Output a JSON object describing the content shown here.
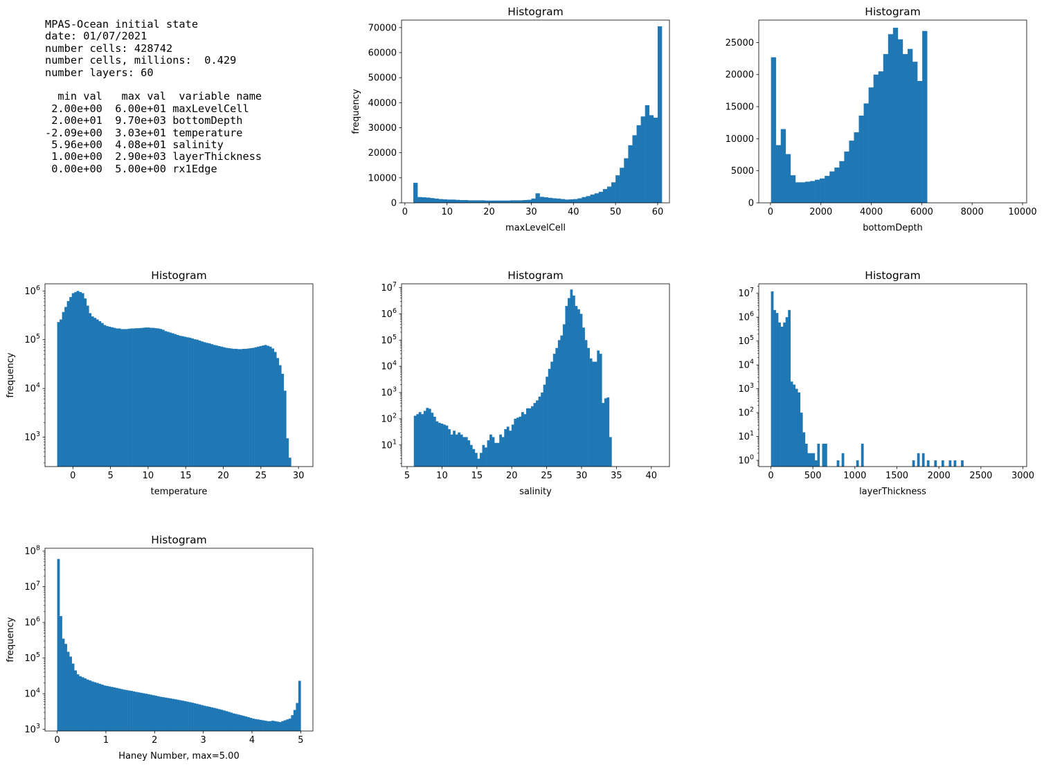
{
  "info": {
    "lines": [
      "MPAS-Ocean initial state",
      "date: 01/07/2021",
      "number cells: 428742",
      "number cells, millions:  0.429",
      "number layers: 60",
      "",
      "  min val   max val  variable name",
      " 2.00e+00  6.00e+01 maxLevelCell",
      " 2.00e+01  9.70e+03 bottomDepth",
      "-2.09e+00  3.03e+01 temperature",
      " 5.96e+00  4.08e+01 salinity",
      " 1.00e+00  2.90e+03 layerThickness",
      " 0.00e+00  5.00e+00 rx1Edge"
    ]
  },
  "colors": {
    "bar": "#1f77b4"
  },
  "chart_data": [
    {
      "type": "bar",
      "title": "Histogram",
      "xlabel": "maxLevelCell",
      "ylabel": "frequency",
      "yscale": "linear",
      "xlim": [
        -0.8,
        62.8
      ],
      "ylim": [
        0,
        73000
      ],
      "xticks": [
        0,
        10,
        20,
        30,
        40,
        50,
        60
      ],
      "yticks": [
        0,
        10000,
        20000,
        30000,
        40000,
        50000,
        60000,
        70000
      ],
      "bin_start": 2,
      "bin_width": 1,
      "values": [
        8000,
        2300,
        2200,
        2100,
        1900,
        1700,
        1500,
        1400,
        1300,
        1300,
        1200,
        1100,
        1100,
        1000,
        1000,
        1000,
        1000,
        900,
        900,
        900,
        900,
        900,
        900,
        1000,
        1000,
        1000,
        1100,
        1200,
        1700,
        3800,
        2400,
        2200,
        2000,
        1800,
        1700,
        1500,
        1300,
        1400,
        1500,
        1800,
        2300,
        2700,
        3300,
        3800,
        4400,
        5500,
        6500,
        8200,
        11000,
        14000,
        17800,
        23000,
        27000,
        31000,
        34500,
        39000,
        35000,
        34000,
        70500
      ]
    },
    {
      "type": "bar",
      "title": "Histogram",
      "xlabel": "bottomDepth",
      "ylabel": "",
      "yscale": "linear",
      "xlim": [
        -465,
        10165
      ],
      "ylim": [
        0,
        28500
      ],
      "xticks": [
        0,
        2000,
        4000,
        6000,
        8000,
        10000
      ],
      "yticks": [
        0,
        5000,
        10000,
        15000,
        20000,
        25000
      ],
      "bin_start": 20,
      "bin_width": 193.6,
      "values": [
        22700,
        9000,
        11500,
        7600,
        4300,
        3200,
        3200,
        3300,
        3400,
        3600,
        3800,
        4200,
        4900,
        5500,
        6500,
        8000,
        9700,
        11000,
        13600,
        15500,
        18000,
        20000,
        20500,
        23200,
        26300,
        27300,
        25500,
        23200,
        24000,
        22000,
        19000,
        26800,
        0,
        0,
        0,
        0,
        0,
        0,
        0,
        0,
        0,
        0,
        0,
        0,
        0,
        0,
        0,
        0,
        0,
        0
      ]
    },
    {
      "type": "bar",
      "title": "Histogram",
      "xlabel": "temperature",
      "ylabel": "frequency",
      "yscale": "log",
      "xlim": [
        -3.71,
        31.92
      ],
      "ylim": [
        250,
        1400000
      ],
      "xticks": [
        0,
        5,
        10,
        15,
        20,
        25,
        30
      ],
      "yticks": [
        1000,
        10000,
        100000,
        1000000
      ],
      "ytick_labels": [
        "10^3",
        "10^4",
        "10^5",
        "10^6"
      ],
      "bin_start": -2.09,
      "bin_width": 0.324,
      "values": [
        230000,
        260000,
        370000,
        470000,
        620000,
        750000,
        900000,
        950000,
        1000000,
        950000,
        900000,
        700000,
        500000,
        350000,
        300000,
        280000,
        260000,
        240000,
        220000,
        200000,
        190000,
        185000,
        180000,
        175000,
        170000,
        170000,
        165000,
        165000,
        165000,
        168000,
        170000,
        170000,
        172000,
        172000,
        174000,
        176000,
        178000,
        178000,
        175000,
        175000,
        172000,
        170000,
        166000,
        160000,
        150000,
        145000,
        140000,
        135000,
        130000,
        125000,
        120000,
        118000,
        115000,
        112000,
        110000,
        106000,
        102000,
        100000,
        96000,
        92000,
        89000,
        86000,
        84000,
        81000,
        78000,
        76000,
        74000,
        72000,
        70000,
        68000,
        67000,
        66000,
        65000,
        65000,
        64000,
        64000,
        65000,
        65000,
        66000,
        67000,
        68000,
        70000,
        72000,
        74000,
        76000,
        78000,
        75000,
        72000,
        66000,
        56000,
        42000,
        30000,
        20000,
        9000,
        950,
        380,
        0,
        0,
        0,
        0
      ]
    },
    {
      "type": "bar",
      "title": "Histogram",
      "xlabel": "salinity",
      "ylabel": "",
      "yscale": "log",
      "xlim": [
        4.2,
        42.6
      ],
      "ylim": [
        1.5,
        14000000
      ],
      "xticks": [
        5,
        10,
        15,
        20,
        25,
        30,
        35,
        40
      ],
      "yticks": [
        10,
        100,
        1000,
        10000,
        100000,
        1000000,
        10000000
      ],
      "ytick_labels": [
        "10^1",
        "10^2",
        "10^3",
        "10^4",
        "10^5",
        "10^6",
        "10^7"
      ],
      "bin_start": 5.96,
      "bin_width": 0.35,
      "values": [
        130,
        150,
        180,
        150,
        200,
        260,
        240,
        170,
        120,
        80,
        70,
        65,
        60,
        55,
        40,
        25,
        35,
        25,
        30,
        25,
        20,
        20,
        15,
        10,
        7,
        5,
        3,
        5,
        10,
        8,
        15,
        25,
        20,
        12,
        12,
        25,
        20,
        40,
        50,
        35,
        60,
        100,
        110,
        120,
        180,
        150,
        250,
        250,
        300,
        400,
        500,
        700,
        1000,
        2000,
        4000,
        8000,
        15000,
        30000,
        50000,
        100000,
        150000,
        400000,
        2000000,
        4000000,
        8500000,
        5000000,
        2000000,
        1500000,
        1000000,
        300000,
        100000,
        50000,
        20000,
        15000,
        15000,
        40000,
        30000,
        400,
        600,
        650,
        20,
        0,
        0,
        0,
        0,
        0,
        0,
        0,
        0,
        0,
        0,
        0,
        0,
        0,
        0,
        0,
        0,
        0,
        0,
        0
      ]
    },
    {
      "type": "bar",
      "title": "Histogram",
      "xlabel": "layerThickness",
      "ylabel": "",
      "yscale": "log",
      "xlim": [
        -144,
        3045
      ],
      "ylim": [
        0.55,
        25000000
      ],
      "xticks": [
        0,
        500,
        1000,
        1500,
        2000,
        2500,
        3000
      ],
      "yticks": [
        1,
        10,
        100,
        1000,
        10000,
        100000,
        1000000,
        10000000
      ],
      "ytick_labels": [
        "10^0",
        "10^1",
        "10^2",
        "10^3",
        "10^4",
        "10^5",
        "10^6",
        "10^7"
      ],
      "bin_start": 1,
      "bin_width": 29,
      "values": [
        12000000,
        2000000,
        1500000,
        600000,
        400000,
        600000,
        1000000,
        2000000,
        2000,
        1500,
        1000,
        700,
        100,
        15,
        5,
        2,
        2,
        2,
        1,
        5,
        0,
        5,
        5,
        0,
        0,
        0,
        0,
        1,
        0,
        2,
        0,
        0,
        0,
        0,
        0,
        1,
        0,
        5,
        0,
        0,
        0,
        0,
        0,
        0,
        0,
        0,
        0,
        0,
        0,
        0,
        0,
        0,
        0,
        0,
        0,
        0,
        0,
        0,
        1,
        0,
        2,
        0,
        2,
        0,
        1,
        0,
        0,
        1,
        0,
        0,
        1,
        0,
        0,
        1,
        0,
        1,
        0,
        0,
        1,
        0,
        0,
        0,
        0,
        0,
        0,
        0,
        0,
        0,
        0,
        0,
        0,
        0,
        0,
        0,
        0,
        0,
        0,
        0,
        0,
        0
      ]
    },
    {
      "type": "bar",
      "title": "Histogram",
      "xlabel": "Haney Number, max=5.00",
      "ylabel": "frequency",
      "yscale": "log",
      "xlim": [
        -0.25,
        5.25
      ],
      "ylim": [
        900,
        120000000
      ],
      "xticks": [
        0,
        1,
        2,
        3,
        4,
        5
      ],
      "yticks": [
        1000,
        10000,
        100000,
        1000000,
        10000000,
        100000000
      ],
      "ytick_labels": [
        "10^3",
        "10^4",
        "10^5",
        "10^6",
        "10^7",
        "10^8"
      ],
      "bin_start": 0,
      "bin_width": 0.05,
      "values": [
        60000000,
        1500000,
        350000,
        250000,
        150000,
        110000,
        70000,
        45000,
        35000,
        31000,
        29000,
        27000,
        25000,
        23500,
        22000,
        21000,
        20000,
        19000,
        18000,
        17000,
        16500,
        16000,
        15500,
        15000,
        14500,
        14000,
        13500,
        13000,
        12700,
        12300,
        12000,
        11600,
        11200,
        10900,
        10600,
        10300,
        10000,
        9700,
        9400,
        9100,
        8800,
        8500,
        8200,
        8000,
        7800,
        7600,
        7400,
        7200,
        7000,
        6800,
        6600,
        6400,
        6200,
        6000,
        5800,
        5600,
        5400,
        5200,
        5000,
        4800,
        4600,
        4450,
        4300,
        4150,
        4000,
        3850,
        3700,
        3550,
        3400,
        3250,
        3100,
        2950,
        2800,
        2700,
        2600,
        2500,
        2400,
        2300,
        2200,
        2100,
        2000,
        1950,
        1900,
        1850,
        1800,
        1750,
        1700,
        1700,
        1750,
        1700,
        1650,
        1600,
        1700,
        1800,
        1900,
        2000,
        2500,
        3500,
        5500,
        23000
      ]
    }
  ]
}
